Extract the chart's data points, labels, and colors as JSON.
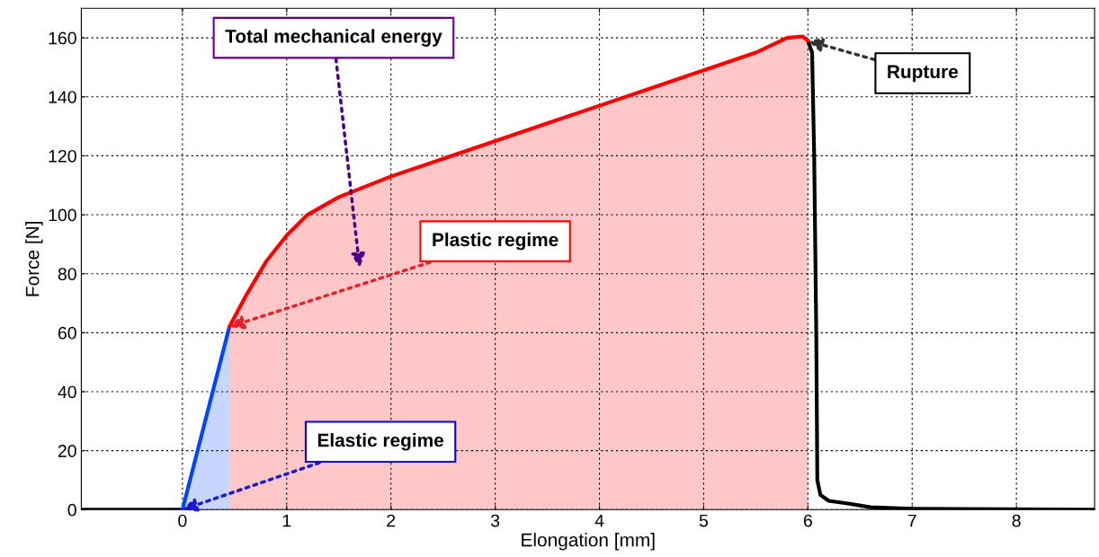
{
  "chart_data": {
    "type": "line",
    "xlabel": "Elongation [mm]",
    "ylabel": "Force [N]",
    "xlim": [
      -0.97,
      8.75
    ],
    "ylim": [
      0,
      170
    ],
    "xticks": [
      0,
      1,
      2,
      3,
      4,
      5,
      6,
      7,
      8
    ],
    "yticks": [
      0,
      20,
      40,
      60,
      80,
      100,
      120,
      140,
      160
    ],
    "grid": true,
    "line_style": "solid",
    "marker": "none",
    "series": [
      {
        "color": "#000000",
        "x": [
          -0.97,
          0,
          null,
          6.0,
          6.04,
          6.06,
          6.08,
          6.09,
          6.12,
          6.2,
          6.4,
          6.6,
          7.0,
          8.75
        ],
        "values": [
          0,
          0,
          null,
          159,
          155,
          120,
          60,
          10,
          5,
          3,
          2,
          0.8,
          0.3,
          0
        ]
      },
      {
        "type": "area",
        "color": "#0044ff",
        "x": [
          0,
          0.45
        ],
        "values": [
          0,
          62
        ]
      },
      {
        "type": "area",
        "color": "#ff0000",
        "x": [
          0.45,
          0.6,
          0.8,
          1.0,
          1.2,
          1.5,
          2.0,
          2.5,
          3.0,
          3.5,
          4.0,
          4.5,
          5.0,
          5.5,
          5.8,
          5.95,
          6.0
        ],
        "values": [
          62,
          72,
          84,
          93,
          100,
          106,
          113,
          119,
          125,
          131,
          137,
          143,
          149,
          155,
          160,
          160.5,
          159
        ]
      }
    ],
    "annotations": [
      "Total mechanical energy",
      {
        "text": "Plastic regime",
        "x": 0.45,
        "y": 62
      },
      {
        "text": "Elastic regime",
        "x": 0,
        "y": 0
      },
      {
        "text": "Rupture",
        "x": 6.0,
        "y": 159
      }
    ]
  }
}
